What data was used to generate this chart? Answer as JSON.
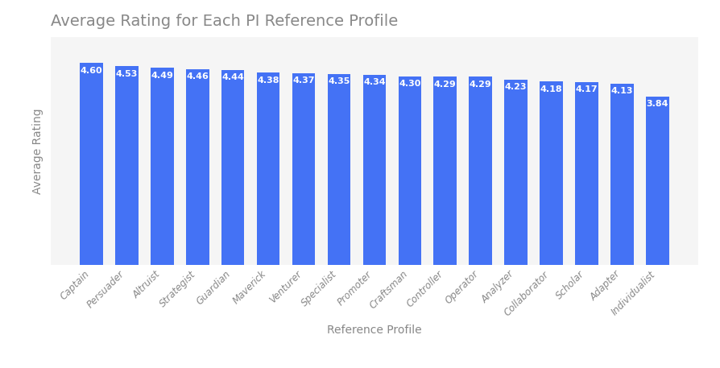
{
  "title": "Average Rating for Each PI Reference Profile",
  "xlabel": "Reference Profile",
  "ylabel": "Average Rating",
  "categories": [
    "Captain",
    "Persuader",
    "Altruist",
    "Strategist",
    "Guardian",
    "Maverick",
    "Venturer",
    "Specialist",
    "Promoter",
    "Craftsman",
    "Controller",
    "Operator",
    "Analyzer",
    "Collaborator",
    "Scholar",
    "Adapter",
    "Individualist"
  ],
  "values": [
    4.6,
    4.53,
    4.49,
    4.46,
    4.44,
    4.38,
    4.37,
    4.35,
    4.34,
    4.3,
    4.29,
    4.29,
    4.23,
    4.18,
    4.17,
    4.13,
    3.84
  ],
  "bar_color": "#4472F5",
  "label_color": "#ffffff",
  "label_fontsize": 8.0,
  "title_fontsize": 14,
  "axis_label_fontsize": 10,
  "tick_label_fontsize": 8.5,
  "background_color": "#ffffff",
  "plot_bg_color": "#f5f5f5",
  "ylim_min": 0,
  "ylim_max": 5.2,
  "bar_width": 0.65,
  "title_color": "#888888",
  "axis_color": "#888888"
}
